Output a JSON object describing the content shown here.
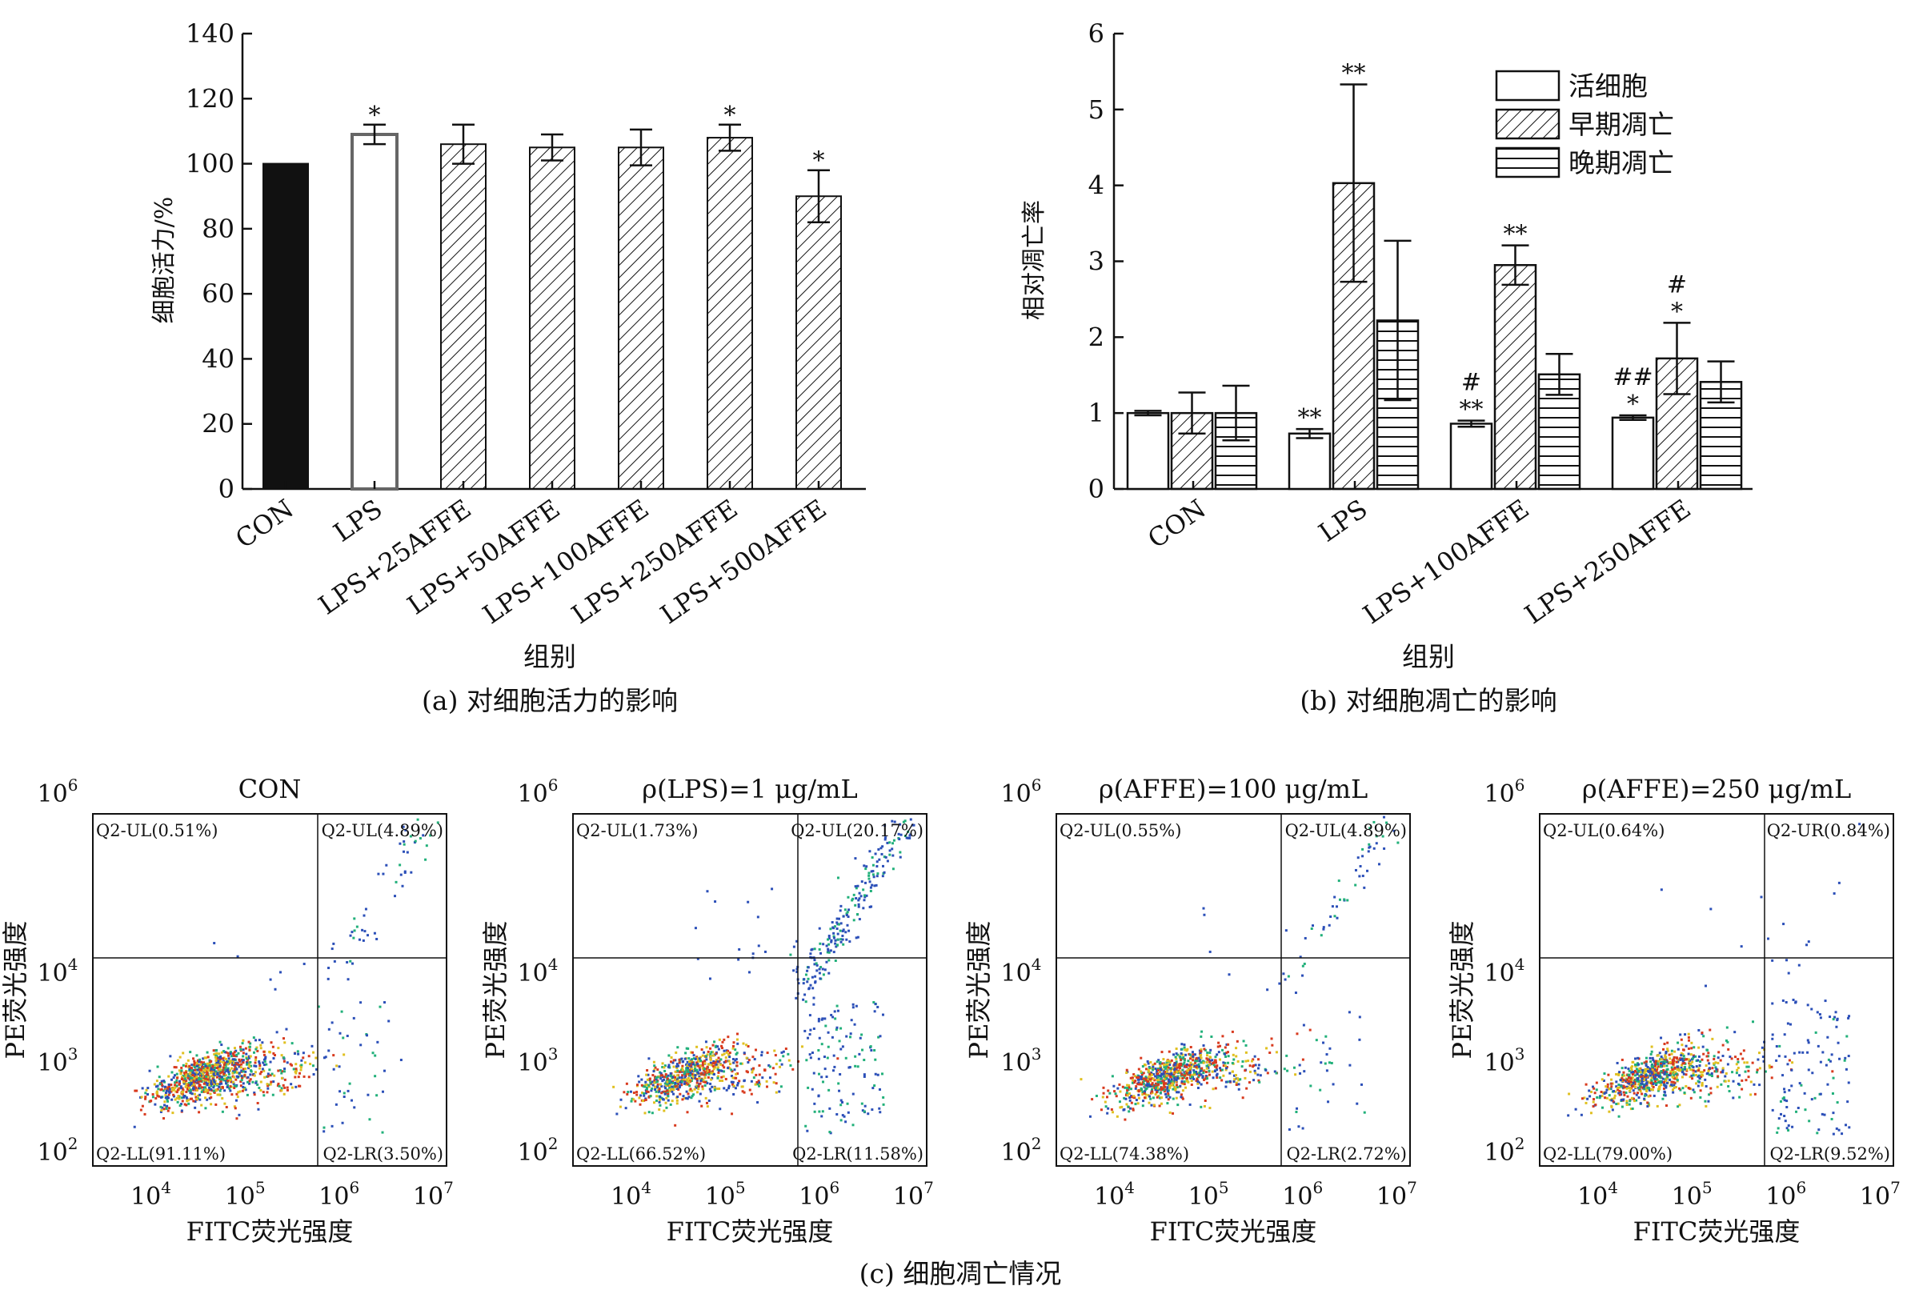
{
  "chart_data": [
    {
      "id": "a",
      "type": "bar",
      "caption": "(a) 对细胞活力的影响",
      "xlabel": "组别",
      "ylabel": "细胞活力/%",
      "ylim": [
        0,
        140
      ],
      "yticks": [
        0,
        20,
        40,
        60,
        80,
        100,
        120,
        140
      ],
      "categories": [
        "CON",
        "LPS",
        "LPS+25AFFE",
        "LPS+50AFFE",
        "LPS+100AFFE",
        "LPS+250AFFE",
        "LPS+500AFFE"
      ],
      "values": [
        100,
        109,
        106,
        105,
        105,
        108,
        90
      ],
      "errors": [
        0,
        3,
        6,
        4,
        5.5,
        4,
        8
      ],
      "marks": [
        "",
        "*",
        "",
        "",
        "",
        "*",
        "*"
      ],
      "styles": [
        "solid",
        "open",
        "hatch",
        "hatch",
        "hatch",
        "hatch",
        "hatch"
      ]
    },
    {
      "id": "b",
      "type": "bar",
      "caption": "(b) 对细胞凋亡的影响",
      "xlabel": "组别",
      "ylabel": "相对凋亡率",
      "ylim": [
        0,
        6
      ],
      "yticks": [
        0,
        1,
        2,
        3,
        4,
        5,
        6
      ],
      "categories": [
        "CON",
        "LPS",
        "LPS+100AFFE",
        "LPS+250AFFE"
      ],
      "series": [
        {
          "name": "活细胞",
          "pattern": "open",
          "values": [
            1.0,
            0.73,
            0.86,
            0.94
          ],
          "errors": [
            0.03,
            0.06,
            0.04,
            0.03
          ],
          "marks": [
            [],
            [
              "**"
            ],
            [
              "**",
              "#"
            ],
            [
              "*",
              "##"
            ]
          ]
        },
        {
          "name": "早期凋亡",
          "pattern": "hatch",
          "values": [
            1.0,
            4.03,
            2.95,
            1.72
          ],
          "errors": [
            0.27,
            1.3,
            0.26,
            0.47
          ],
          "marks": [
            [],
            [
              "**"
            ],
            [
              "**"
            ],
            [
              "*",
              "#"
            ]
          ]
        },
        {
          "name": "晚期凋亡",
          "pattern": "hlines",
          "values": [
            1.0,
            2.22,
            1.51,
            1.41
          ],
          "errors": [
            0.36,
            1.05,
            0.27,
            0.27
          ],
          "marks": [
            [],
            [],
            [],
            []
          ]
        }
      ]
    },
    {
      "id": "c",
      "type": "scatter",
      "caption": "(c) 细胞凋亡情况",
      "xlabel": "FITC荧光强度",
      "ylabel": "PE荧光强度",
      "xticks": [
        4,
        5,
        6,
        7
      ],
      "yticks": [
        2,
        3,
        4,
        6
      ],
      "tick_base": "10",
      "panels": [
        {
          "title": "CON",
          "q_ul": "Q2-UL(0.51%)",
          "q_ur": "Q2-UL(4.89%)",
          "q_ll": "Q2-LL(91.11%)",
          "q_lr": "Q2-LR(3.50%)",
          "ll": 91.11,
          "ul": 0.51,
          "ur": 4.89,
          "lr": 3.5
        },
        {
          "title": "ρ(LPS)=1 μg/mL",
          "q_ul": "Q2-UL(1.73%)",
          "q_ur": "Q2-UL(20.17%)",
          "q_ll": "Q2-LL(66.52%)",
          "q_lr": "Q2-LR(11.58%)",
          "ll": 66.52,
          "ul": 1.73,
          "ur": 20.17,
          "lr": 11.58
        },
        {
          "title": "ρ(AFFE)=100 μg/mL",
          "q_ul": "Q2-UL(0.55%)",
          "q_ur": "Q2-UL(4.89%)",
          "q_ll": "Q2-LL(74.38%)",
          "q_lr": "Q2-LR(2.72%)",
          "ll": 74.38,
          "ul": 0.55,
          "ur": 4.89,
          "lr": 2.72
        },
        {
          "title": "ρ(AFFE)=250 μg/mL",
          "q_ul": "Q2-UL(0.64%)",
          "q_ur": "Q2-UR(0.84%)",
          "q_ll": "Q2-LL(79.00%)",
          "q_lr": "Q2-LR(9.52%)",
          "ll": 79.0,
          "ul": 0.64,
          "ur": 0.84,
          "lr": 9.52
        }
      ]
    }
  ],
  "colors": {
    "ink": "#111111",
    "density_low": "#2b4fb8",
    "density_mid": "#21b07a",
    "density_high": "#e0c020",
    "density_peak": "#d83a1e"
  }
}
